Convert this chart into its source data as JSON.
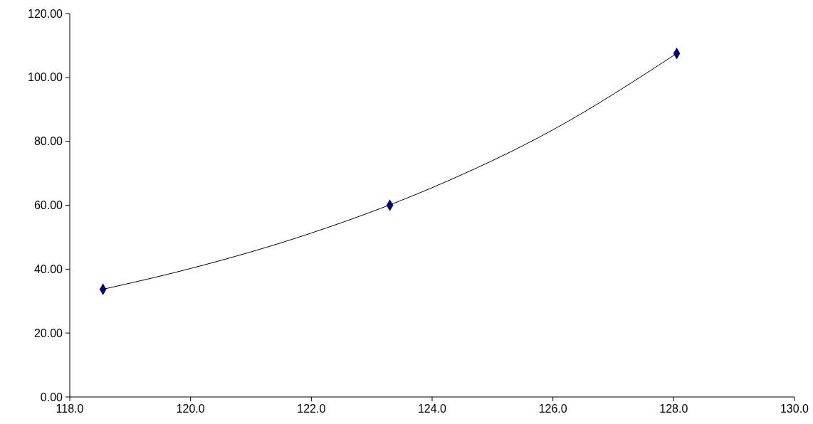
{
  "chart_data": {
    "type": "scatter",
    "xlim": [
      118,
      130
    ],
    "ylim": [
      0,
      120
    ],
    "xticks": [
      {
        "value": 118,
        "label": "118.0"
      },
      {
        "value": 120,
        "label": "120.0"
      },
      {
        "value": 122,
        "label": "122.0"
      },
      {
        "value": 124,
        "label": "124.0"
      },
      {
        "value": 126,
        "label": "126.0"
      },
      {
        "value": 128,
        "label": "128.0"
      },
      {
        "value": 130,
        "label": "130.0"
      }
    ],
    "yticks": [
      {
        "value": 0,
        "label": "0.00"
      },
      {
        "value": 20,
        "label": "20.00"
      },
      {
        "value": 40,
        "label": "40.00"
      },
      {
        "value": 60,
        "label": "60.00"
      },
      {
        "value": 80,
        "label": "80.00"
      },
      {
        "value": 100,
        "label": "100.00"
      },
      {
        "value": 120,
        "label": "120.00"
      }
    ],
    "grid": false,
    "series": [
      {
        "type": "line",
        "color": "#000000",
        "marker": "none",
        "x": [
          118.55,
          120,
          122,
          124,
          126,
          128.05
        ],
        "values": [
          33.7,
          40.2,
          51.3,
          65.5,
          83.6,
          107.5
        ]
      },
      {
        "color": "#000080",
        "marker": "diamond",
        "x": [
          118.55,
          123.3,
          128.05
        ],
        "values": [
          33.7,
          60.0,
          107.5
        ]
      }
    ]
  }
}
